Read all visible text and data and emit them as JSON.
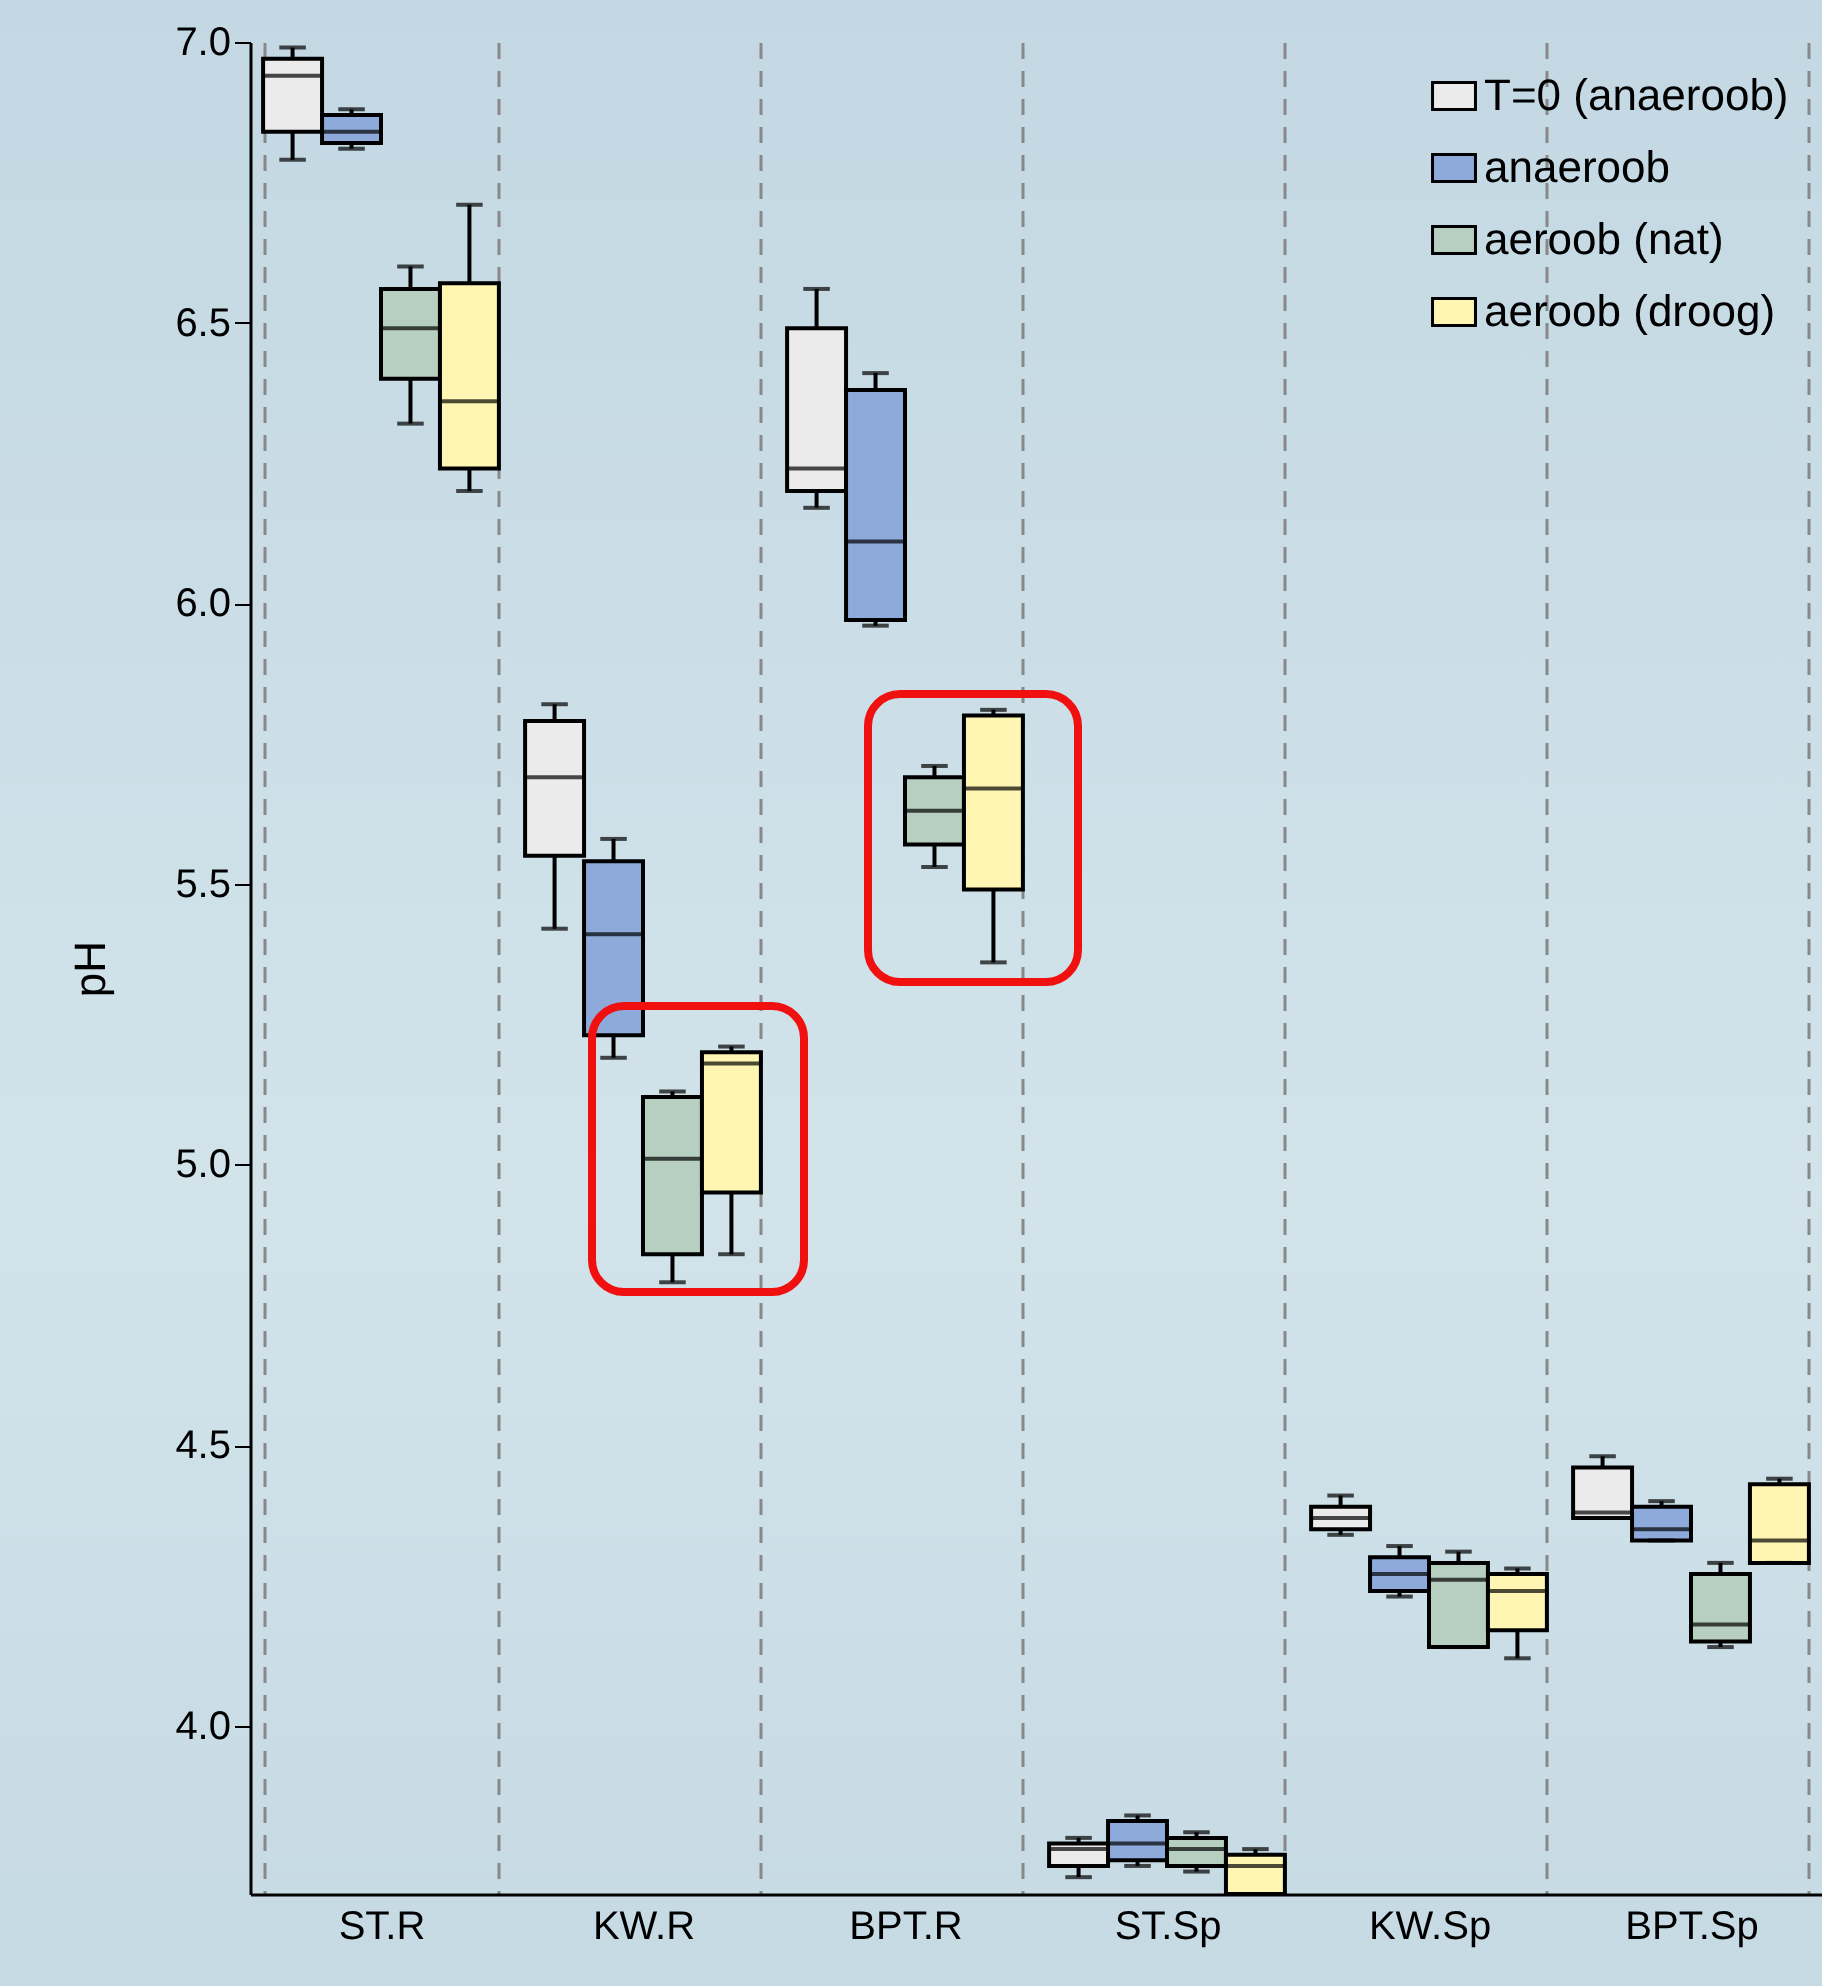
{
  "chart_data": {
    "type": "box",
    "categories": [
      "ST.R",
      "KW.R",
      "BPT.R",
      "ST.Sp",
      "KW.Sp",
      "BPT.Sp"
    ],
    "ylabel": "pH",
    "ylim": [
      3.7,
      7.0
    ],
    "yticks": [
      {
        "value": 4,
        "label": "4.0"
      },
      {
        "value": 4.5,
        "label": "4.5"
      },
      {
        "value": 5,
        "label": "5.0"
      },
      {
        "value": 5.5,
        "label": "5.5"
      },
      {
        "value": 6,
        "label": "6.0"
      },
      {
        "value": 6.5,
        "label": "6.5"
      },
      {
        "value": 7,
        "label": "7.0"
      }
    ],
    "grid": "x",
    "legend": "top right",
    "series": [
      {
        "name": "T=0 (anaeroob)",
        "color": "#ebebeb",
        "boxes": [
          {
            "low": 6.79,
            "q1": 6.84,
            "median": 6.94,
            "q3": 6.97,
            "high": 6.99
          },
          {
            "low": 5.42,
            "q1": 5.55,
            "median": 5.69,
            "q3": 5.79,
            "high": 5.82
          },
          {
            "low": 6.17,
            "q1": 6.2,
            "median": 6.24,
            "q3": 6.49,
            "high": 6.56
          },
          {
            "low": 3.73,
            "q1": 3.75,
            "median": 3.78,
            "q3": 3.79,
            "high": 3.8
          },
          {
            "low": 4.34,
            "q1": 4.35,
            "median": 4.37,
            "q3": 4.39,
            "high": 4.41
          },
          {
            "low": 4.37,
            "q1": 4.37,
            "median": 4.38,
            "q3": 4.46,
            "high": 4.48
          }
        ]
      },
      {
        "name": "anaeroob",
        "color": "#8eaadb",
        "boxes": [
          {
            "low": 6.81,
            "q1": 6.82,
            "median": 6.84,
            "q3": 6.87,
            "high": 6.88
          },
          {
            "low": 5.19,
            "q1": 5.23,
            "median": 5.41,
            "q3": 5.54,
            "high": 5.58
          },
          {
            "low": 5.96,
            "q1": 5.97,
            "median": 6.11,
            "q3": 6.38,
            "high": 6.41
          },
          {
            "low": 3.75,
            "q1": 3.76,
            "median": 3.79,
            "q3": 3.83,
            "high": 3.84
          },
          {
            "low": 4.23,
            "q1": 4.24,
            "median": 4.27,
            "q3": 4.3,
            "high": 4.32
          },
          {
            "low": 4.33,
            "q1": 4.33,
            "median": 4.35,
            "q3": 4.39,
            "high": 4.4
          }
        ]
      },
      {
        "name": "aeroob (nat)",
        "color": "#b7cfc0",
        "boxes": [
          {
            "low": 6.32,
            "q1": 6.4,
            "median": 6.49,
            "q3": 6.56,
            "high": 6.6
          },
          {
            "low": 4.79,
            "q1": 4.84,
            "median": 5.01,
            "q3": 5.12,
            "high": 5.13
          },
          {
            "low": 5.53,
            "q1": 5.57,
            "median": 5.63,
            "q3": 5.69,
            "high": 5.71
          },
          {
            "low": 3.74,
            "q1": 3.75,
            "median": 3.78,
            "q3": 3.8,
            "high": 3.81
          },
          {
            "low": 4.14,
            "q1": 4.14,
            "median": 4.26,
            "q3": 4.29,
            "high": 4.31
          },
          {
            "low": 4.14,
            "q1": 4.15,
            "median": 4.18,
            "q3": 4.27,
            "high": 4.29
          }
        ]
      },
      {
        "name": "aeroob (droog)",
        "color": "#fff6b3",
        "boxes": [
          {
            "low": 6.2,
            "q1": 6.24,
            "median": 6.36,
            "q3": 6.57,
            "high": 6.71
          },
          {
            "low": 4.84,
            "q1": 4.95,
            "median": 5.18,
            "q3": 5.2,
            "high": 5.21
          },
          {
            "low": 5.36,
            "q1": 5.49,
            "median": 5.67,
            "q3": 5.8,
            "high": 5.81
          },
          {
            "low": 3.7,
            "q1": 3.7,
            "median": 3.75,
            "q3": 3.77,
            "high": 3.78
          },
          {
            "low": 4.12,
            "q1": 4.17,
            "median": 4.24,
            "q3": 4.27,
            "high": 4.28
          },
          {
            "low": 4.29,
            "q1": 4.29,
            "median": 4.33,
            "q3": 4.43,
            "high": 4.44
          }
        ]
      }
    ]
  }
}
